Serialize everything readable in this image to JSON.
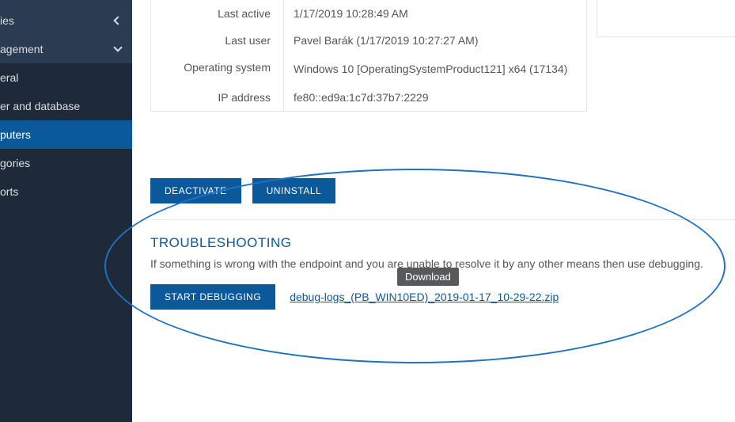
{
  "sidebar": {
    "items": [
      {
        "label": "ies",
        "type": "group",
        "arrow": "left"
      },
      {
        "label": "agement",
        "type": "group",
        "arrow": "down"
      },
      {
        "label": "eral",
        "type": "sub"
      },
      {
        "label": "er and database",
        "type": "sub"
      },
      {
        "label": "puters",
        "type": "sub",
        "active": true
      },
      {
        "label": "gories",
        "type": "sub"
      },
      {
        "label": "orts",
        "type": "sub"
      }
    ]
  },
  "details": {
    "rows": [
      {
        "label": "Last active",
        "value": "1/17/2019 10:28:49 AM"
      },
      {
        "label": "Last user",
        "value": "Pavel Barák (1/17/2019 10:27:27 AM)"
      },
      {
        "label": "Operating system",
        "value": "Windows 10 [OperatingSystemProduct121] x64 (17134)"
      },
      {
        "label": "IP address",
        "value": "fe80::ed9a:1c7d:37b7:2229"
      }
    ]
  },
  "actions": {
    "deactivate": "DEACTIVATE",
    "uninstall": "UNINSTALL"
  },
  "troubleshooting": {
    "title": "TROUBLESHOOTING",
    "description": "If something is wrong with the endpoint and you are unable to resolve it by any other means then use debugging.",
    "start_button": "START DEBUGGING",
    "log_link": "debug-logs_(PB_WIN10ED)_2019-01-17_10-29-22.zip"
  },
  "tooltip": {
    "text": "Download"
  },
  "colors": {
    "brand": "#0b599b",
    "sidebar_bg": "#1e2a3a",
    "sidebar_group_bg": "#2a3b52",
    "text": "#555555",
    "border": "#e3e6e9",
    "tooltip_bg": "#58595b",
    "annotation": "#1f72c2"
  }
}
